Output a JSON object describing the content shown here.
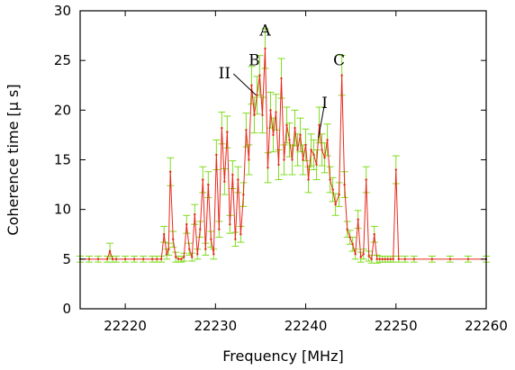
{
  "chart_data": {
    "type": "line",
    "xlabel": "Frequency [MHz]",
    "ylabel": "Coherence time [μ s]",
    "xlim": [
      22215,
      22260
    ],
    "ylim": [
      0,
      30
    ],
    "xticks": [
      22220,
      22230,
      22240,
      22250,
      22260
    ],
    "yticks": [
      0,
      5,
      10,
      15,
      20,
      25,
      30
    ],
    "grid": false,
    "line_color": "#e8291c",
    "errorbar_color": "#7fdc1e",
    "annotations": [
      {
        "text": "A",
        "x": 22235.5,
        "y": 27.5
      },
      {
        "text": "B",
        "x": 22234.3,
        "y": 24.5
      },
      {
        "text": "C",
        "x": 22243.7,
        "y": 24.5
      },
      {
        "text": "II",
        "x": 22231.0,
        "y": 23.2,
        "arrow_to": [
          22234.5,
          21.5
        ]
      },
      {
        "text": "I",
        "x": 22242.1,
        "y": 20.2,
        "arrow_to": [
          22241.4,
          17.2
        ]
      }
    ],
    "series": [
      {
        "x": [
          22215,
          22216,
          22217,
          22218,
          22218.3,
          22218.6,
          22219,
          22220,
          22221,
          22222,
          22223,
          22223.5,
          22224,
          22224.3,
          22224.6,
          22224.8,
          22225,
          22225.3,
          22225.6,
          22225.9,
          22226.2,
          22226.5,
          22226.8,
          22227.1,
          22227.4,
          22227.7,
          22228,
          22228.3,
          22228.6,
          22228.9,
          22229.2,
          22229.5,
          22229.8,
          22230.1,
          22230.4,
          22230.7,
          22231,
          22231.3,
          22231.6,
          22231.9,
          22232.2,
          22232.5,
          22232.8,
          22233.1,
          22233.4,
          22233.7,
          22234,
          22234.3,
          22234.6,
          22234.9,
          22235.2,
          22235.5,
          22235.8,
          22236.1,
          22236.4,
          22236.7,
          22237,
          22237.3,
          22237.6,
          22237.9,
          22238.2,
          22238.5,
          22238.8,
          22239.1,
          22239.4,
          22239.7,
          22240,
          22240.3,
          22240.6,
          22240.9,
          22241.2,
          22241.5,
          22241.8,
          22242.1,
          22242.4,
          22242.7,
          22243,
          22243.3,
          22243.7,
          22244,
          22244.3,
          22244.6,
          22244.9,
          22245.2,
          22245.5,
          22245.8,
          22246.1,
          22246.4,
          22246.7,
          22247,
          22247.3,
          22247.6,
          22247.9,
          22248.2,
          22248.5,
          22248.8,
          22249.1,
          22249.4,
          22249.7,
          22250,
          22250.3,
          22251,
          22252,
          22254,
          22256,
          22258,
          22260
        ],
        "y": [
          5,
          5,
          5,
          5,
          5.8,
          5,
          5,
          5,
          5,
          5,
          5,
          5,
          5,
          7.5,
          5.5,
          6,
          13.8,
          7,
          5.2,
          5,
          5,
          5.2,
          8.5,
          6,
          5.2,
          9.5,
          5.5,
          8,
          13,
          6,
          12.5,
          7,
          5.5,
          15.5,
          8,
          18.2,
          12.8,
          17.8,
          8.5,
          13.5,
          7,
          13,
          7.5,
          11.5,
          18,
          15,
          22.5,
          19.5,
          21.5,
          23.5,
          19.5,
          26.2,
          14.2,
          20,
          17.5,
          19.8,
          14.5,
          23.2,
          15,
          18.5,
          17,
          15,
          18.2,
          16,
          17.5,
          15,
          16.5,
          13,
          16,
          15.5,
          14.5,
          18.5,
          16,
          15.2,
          17,
          13,
          12,
          10.5,
          11.5,
          23.5,
          12.5,
          8,
          7.2,
          6.5,
          5.5,
          9,
          5.2,
          5.5,
          13,
          5.3,
          5,
          7.5,
          5,
          5,
          5,
          5,
          5,
          5,
          5,
          14,
          5,
          5,
          5,
          5,
          5,
          5,
          5
        ],
        "yerr": [
          0.3,
          0.3,
          0.3,
          0.3,
          0.8,
          0.3,
          0.3,
          0.3,
          0.3,
          0.3,
          0.3,
          0.3,
          0.3,
          0.8,
          0.5,
          0.6,
          1.4,
          0.8,
          0.5,
          0.3,
          0.3,
          0.4,
          0.9,
          0.6,
          0.4,
          1,
          0.5,
          0.8,
          1.3,
          0.6,
          1.3,
          0.8,
          0.5,
          1.5,
          0.8,
          1.6,
          1.3,
          1.6,
          0.9,
          1.4,
          0.7,
          1.3,
          0.8,
          1.2,
          1.7,
          1.5,
          1.9,
          1.8,
          1.9,
          2,
          1.8,
          2,
          1.5,
          1.8,
          1.7,
          1.8,
          1.5,
          2,
          1.5,
          1.8,
          1.7,
          1.5,
          1.8,
          1.6,
          1.7,
          1.5,
          1.6,
          1.3,
          1.6,
          1.5,
          1.5,
          1.8,
          1.6,
          1.5,
          1.6,
          1.3,
          1.2,
          1.1,
          1.2,
          2,
          1.3,
          0.8,
          0.7,
          0.7,
          0.5,
          0.9,
          0.5,
          0.5,
          1.3,
          0.5,
          0.4,
          0.8,
          0.4,
          0.3,
          0.3,
          0.3,
          0.3,
          0.3,
          0.3,
          1.4,
          0.3,
          0.3,
          0.3,
          0.3,
          0.3,
          0.3,
          0.3
        ]
      }
    ]
  }
}
